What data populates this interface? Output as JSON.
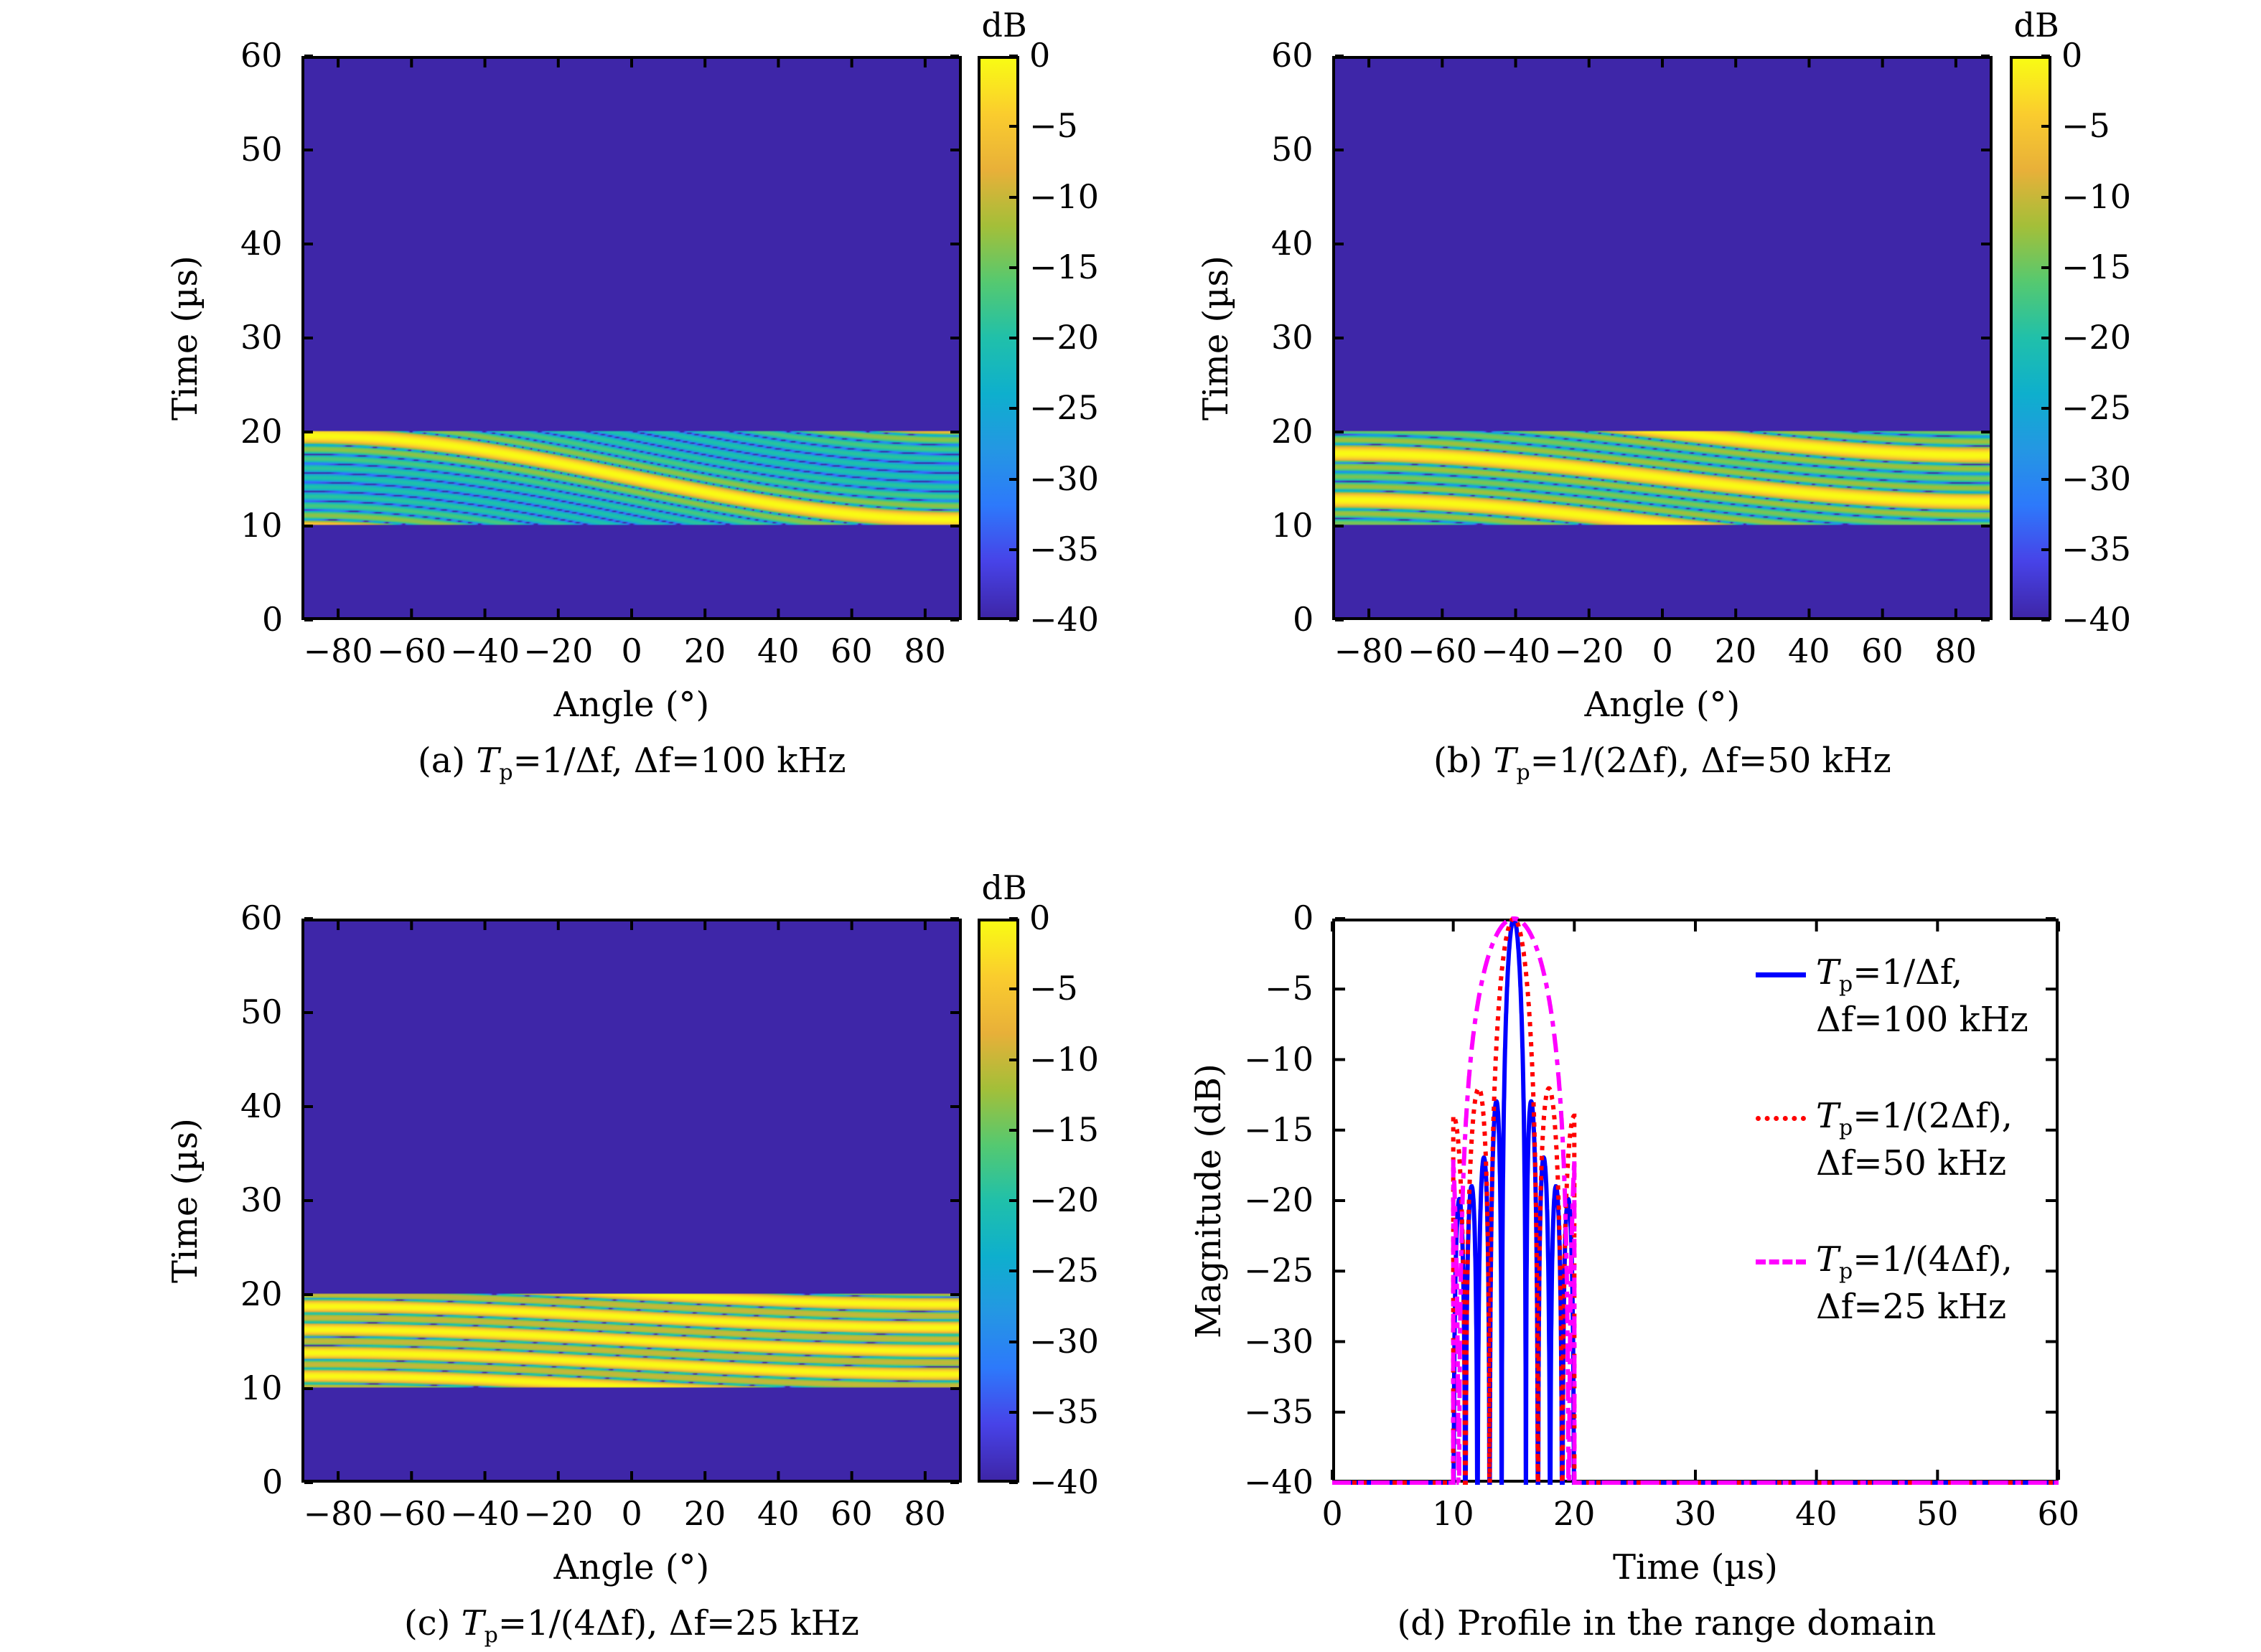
{
  "figure": {
    "colormap": "parula",
    "colorbar_unit": "dB",
    "colorbar_ticks": [
      "0",
      "−5",
      "−10",
      "−15",
      "−20",
      "−25",
      "−30",
      "−35",
      "−40"
    ],
    "colors": {
      "background_floor": "#3d26a8",
      "series_blue": "#0000ff",
      "series_red": "#ff0000",
      "series_magenta": "#ff00ff"
    }
  },
  "chart_data": [
    {
      "id": "a",
      "type": "heatmap",
      "caption": "(a) Tₚ=1/Δf, Δf=100 kHz",
      "caption_parts": {
        "prefix": "(a) ",
        "T": "T",
        "sub": "p",
        "rest": "=1/Δf, Δf=100 kHz"
      },
      "xlabel": "Angle (°)",
      "ylabel": "Time (µs)",
      "xlim": [
        -90,
        90
      ],
      "ylim": [
        0,
        60
      ],
      "xticks": [
        "−80",
        "−60",
        "−40",
        "−20",
        "0",
        "20",
        "40",
        "60",
        "80"
      ],
      "xtick_values": [
        -80,
        -60,
        -40,
        -20,
        0,
        20,
        40,
        60,
        80
      ],
      "yticks": [
        "0",
        "10",
        "20",
        "30",
        "40",
        "50",
        "60"
      ],
      "ytick_values": [
        0,
        10,
        20,
        30,
        40,
        50,
        60
      ],
      "clim": [
        -40,
        0
      ],
      "pulse_window_us": [
        10,
        20
      ],
      "main_lobe": "sinusoidal ridge from ~19.5 µs at −90° to ~10.5 µs at +90°",
      "tp_factor": 1,
      "delta_f_khz": 100
    },
    {
      "id": "b",
      "type": "heatmap",
      "caption": "(b) Tₚ=1/(2Δf), Δf=50 kHz",
      "caption_parts": {
        "prefix": "(b) ",
        "T": "T",
        "sub": "p",
        "rest": "=1/(2Δf), Δf=50 kHz"
      },
      "xlabel": "Angle (°)",
      "ylabel": "Time (µs)",
      "xlim": [
        -90,
        90
      ],
      "ylim": [
        0,
        60
      ],
      "xticks": [
        "−80",
        "−60",
        "−40",
        "−20",
        "0",
        "20",
        "40",
        "60",
        "80"
      ],
      "xtick_values": [
        -80,
        -60,
        -40,
        -20,
        0,
        20,
        40,
        60,
        80
      ],
      "yticks": [
        "0",
        "10",
        "20",
        "30",
        "40",
        "50",
        "60"
      ],
      "ytick_values": [
        0,
        10,
        20,
        30,
        40,
        50,
        60
      ],
      "clim": [
        -40,
        0
      ],
      "pulse_window_us": [
        10,
        20
      ],
      "main_lobe": "ridge from ~20 µs at −25° to ~10 µs at +30°",
      "tp_factor": 2,
      "delta_f_khz": 50
    },
    {
      "id": "c",
      "type": "heatmap",
      "caption": "(c) Tₚ=1/(4Δf), Δf=25 kHz",
      "caption_parts": {
        "prefix": "(c) ",
        "T": "T",
        "sub": "p",
        "rest": "=1/(4Δf), Δf=25 kHz"
      },
      "xlabel": "Angle (°)",
      "ylabel": "Time (µs)",
      "xlim": [
        -90,
        90
      ],
      "ylim": [
        0,
        60
      ],
      "xticks": [
        "−80",
        "−60",
        "−40",
        "−20",
        "0",
        "20",
        "40",
        "60",
        "80"
      ],
      "xtick_values": [
        -80,
        -60,
        -40,
        -20,
        0,
        20,
        40,
        60,
        80
      ],
      "yticks": [
        "0",
        "10",
        "20",
        "30",
        "40",
        "50",
        "60"
      ],
      "ytick_values": [
        0,
        10,
        20,
        30,
        40,
        50,
        60
      ],
      "clim": [
        -40,
        0
      ],
      "pulse_window_us": [
        10,
        20
      ],
      "main_lobe": "ridge from ~20 µs at −8° to ~10 µs at +15°",
      "tp_factor": 4,
      "delta_f_khz": 25
    },
    {
      "id": "d",
      "type": "line",
      "caption": "(d) Profile in the range domain",
      "caption_parts": {
        "prefix": "(d) Profile in the range domain"
      },
      "xlabel": "Time (µs)",
      "ylabel": "Magnitude (dB)",
      "xlim": [
        0,
        60
      ],
      "ylim": [
        -40,
        0
      ],
      "xticks": [
        "0",
        "10",
        "20",
        "30",
        "40",
        "50",
        "60"
      ],
      "xtick_values": [
        0,
        10,
        20,
        30,
        40,
        50,
        60
      ],
      "yticks": [
        "0",
        "−5",
        "−10",
        "−15",
        "−20",
        "−25",
        "−30",
        "−35",
        "−40"
      ],
      "ytick_values": [
        0,
        -5,
        -10,
        -15,
        -20,
        -25,
        -30,
        -35,
        -40
      ],
      "grid": false,
      "legend_position": "top-right",
      "series": [
        {
          "name_line1": "Tₚ=1/Δf,",
          "name_line2": "Δf=100 kHz",
          "T": "T",
          "sub": "p",
          "rest1": "=1/Δf,",
          "style": "solid",
          "color": "#0000ff",
          "peak_time_us": 15,
          "peak_db": 0,
          "nulls_us": [
            10,
            11,
            12,
            13,
            14,
            16,
            17,
            18,
            19,
            20
          ],
          "sidelobes_db": [
            -20,
            -19,
            -17,
            -13,
            -13,
            -17,
            -19,
            -20
          ]
        },
        {
          "name_line1": "Tₚ=1/(2Δf),",
          "name_line2": "Δf=50 kHz",
          "T": "T",
          "sub": "p",
          "rest1": "=1/(2Δf),",
          "style": "dotted",
          "color": "#ff0000",
          "peak_time_us": 15,
          "peak_db": 0,
          "nulls_us": [
            10,
            12,
            14,
            16,
            18,
            20
          ],
          "sidelobes_db": [
            -18,
            -13,
            -13,
            -18
          ]
        },
        {
          "name_line1": "Tₚ=1/(4Δf),",
          "name_line2": "Δf=25 kHz",
          "T": "T",
          "sub": "p",
          "rest1": "=1/(4Δf),",
          "style": "dash-dot",
          "color": "#ff00ff",
          "peak_time_us": 15,
          "peak_db": 0,
          "nulls_us": [
            10,
            20
          ],
          "edge_db": -14.5
        }
      ],
      "floor_db": -40
    }
  ]
}
